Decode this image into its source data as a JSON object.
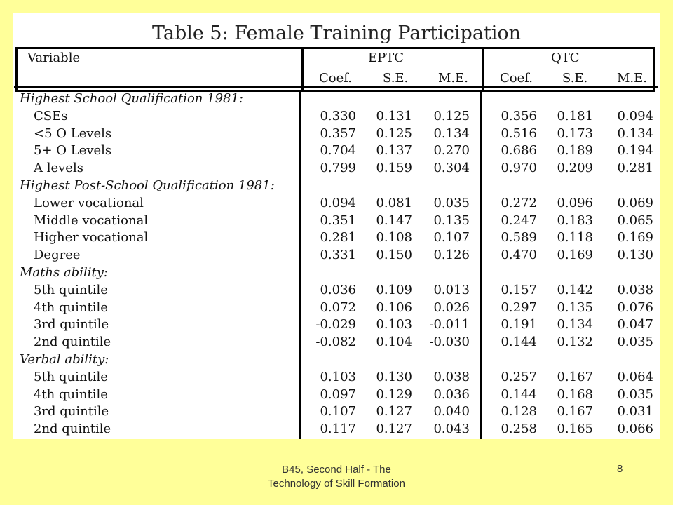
{
  "title": "Table 5:  Female Training Participation",
  "header": {
    "variable": "Variable",
    "group1": "EPTC",
    "group2": "QTC",
    "cols": [
      "Coef.",
      "S.E.",
      "M.E.",
      "Coef.",
      "S.E.",
      "M.E."
    ]
  },
  "rows": [
    {
      "type": "section",
      "label": "Highest School Qualification 1981:"
    },
    {
      "type": "item",
      "label": "CSEs",
      "values": [
        "0.330",
        "0.131",
        "0.125",
        "0.356",
        "0.181",
        "0.094"
      ]
    },
    {
      "type": "item",
      "label": "<5 O Levels",
      "values": [
        "0.357",
        "0.125",
        "0.134",
        "0.516",
        "0.173",
        "0.134"
      ]
    },
    {
      "type": "item",
      "label": "5+ O Levels",
      "values": [
        "0.704",
        "0.137",
        "0.270",
        "0.686",
        "0.189",
        "0.194"
      ]
    },
    {
      "type": "item",
      "label": "A levels",
      "values": [
        "0.799",
        "0.159",
        "0.304",
        "0.970",
        "0.209",
        "0.281"
      ]
    },
    {
      "type": "section",
      "label": "Highest Post-School Qualification 1981:"
    },
    {
      "type": "item",
      "label": "Lower vocational",
      "values": [
        "0.094",
        "0.081",
        "0.035",
        "0.272",
        "0.096",
        "0.069"
      ]
    },
    {
      "type": "item",
      "label": "Middle vocational",
      "values": [
        "0.351",
        "0.147",
        "0.135",
        "0.247",
        "0.183",
        "0.065"
      ]
    },
    {
      "type": "item",
      "label": "Higher vocational",
      "values": [
        "0.281",
        "0.108",
        "0.107",
        "0.589",
        "0.118",
        "0.169"
      ]
    },
    {
      "type": "item",
      "label": "Degree",
      "values": [
        "0.331",
        "0.150",
        "0.126",
        "0.470",
        "0.169",
        "0.130"
      ]
    },
    {
      "type": "section",
      "label": "Maths ability:"
    },
    {
      "type": "item",
      "label": "5th quintile",
      "values": [
        "0.036",
        "0.109",
        "0.013",
        "0.157",
        "0.142",
        "0.038"
      ]
    },
    {
      "type": "item",
      "label": "4th quintile",
      "values": [
        "0.072",
        "0.106",
        "0.026",
        "0.297",
        "0.135",
        "0.076"
      ]
    },
    {
      "type": "item",
      "label": "3rd quintile",
      "values": [
        "-0.029",
        "0.103",
        "-0.011",
        "0.191",
        "0.134",
        "0.047"
      ]
    },
    {
      "type": "item",
      "label": "2nd quintile",
      "values": [
        "-0.082",
        "0.104",
        "-0.030",
        "0.144",
        "0.132",
        "0.035"
      ]
    },
    {
      "type": "section",
      "label": "Verbal ability:"
    },
    {
      "type": "item",
      "label": "5th quintile",
      "values": [
        "0.103",
        "0.130",
        "0.038",
        "0.257",
        "0.167",
        "0.064"
      ]
    },
    {
      "type": "item",
      "label": "4th quintile",
      "values": [
        "0.097",
        "0.129",
        "0.036",
        "0.144",
        "0.168",
        "0.035"
      ]
    },
    {
      "type": "item",
      "label": "3rd quintile",
      "values": [
        "0.107",
        "0.127",
        "0.040",
        "0.128",
        "0.167",
        "0.031"
      ]
    },
    {
      "type": "item",
      "label": "2nd quintile",
      "values": [
        "0.117",
        "0.127",
        "0.043",
        "0.258",
        "0.165",
        "0.066"
      ]
    }
  ],
  "footer": {
    "line1": "B45, Second Half - The",
    "line2": "Technology of Skill Formation",
    "page": "8"
  },
  "colors": {
    "background": "#FFFF99",
    "panel": "#FFFFFF",
    "rule": "#000000"
  }
}
